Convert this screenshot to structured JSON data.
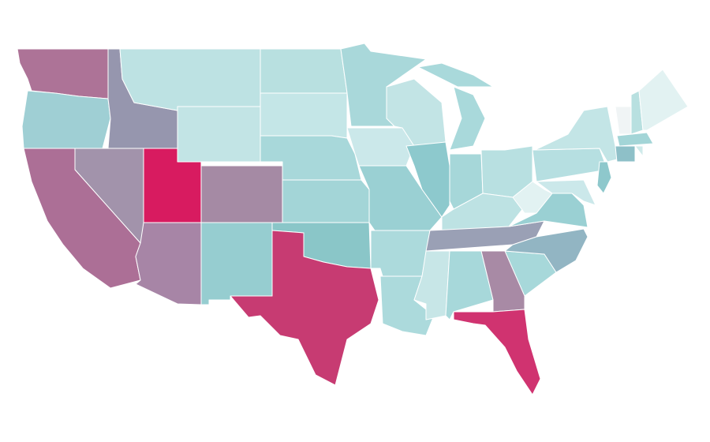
{
  "map": {
    "type": "choropleth",
    "region_colors": [
      "#ad7397",
      "#9fcfd4",
      "#9696ae",
      "#bde2e3",
      "#c2e4e5",
      "#b8e0e0",
      "#c4e6e7",
      "#a8d8da",
      "#a3d5d7",
      "#8ac6c8",
      "#c73b72",
      "#96cdd0",
      "#a58aa4",
      "#d81b60",
      "#a293ab",
      "#ac6f96",
      "#a785a6",
      "#a9d8da",
      "#cbe8ea",
      "#9ad0d3",
      "#acdadc",
      "#acdadc",
      "#c2e4e5",
      "#8dc9cd",
      "#a9d9db",
      "#a9d9db",
      "#a6d7d9",
      "#b8e0e1",
      "#bde2e3",
      "#9aa0b5",
      "#c7e6e7",
      "#a7d8da",
      "#a88aa5",
      "#d03370",
      "#a7d8da",
      "#92b5c3",
      "#9ad0d3",
      "#e2f2f2",
      "#b6dfe1",
      "#c3e5e6",
      "#cbe8ea",
      "#8ec8cc",
      "#f0f4f5",
      "#b8e0e0",
      "#e2f2f2",
      "#a3d5d7",
      "#8ec0c8",
      "#cfeaea"
    ],
    "border_color": "#ffffff",
    "background": "#ffffff"
  }
}
